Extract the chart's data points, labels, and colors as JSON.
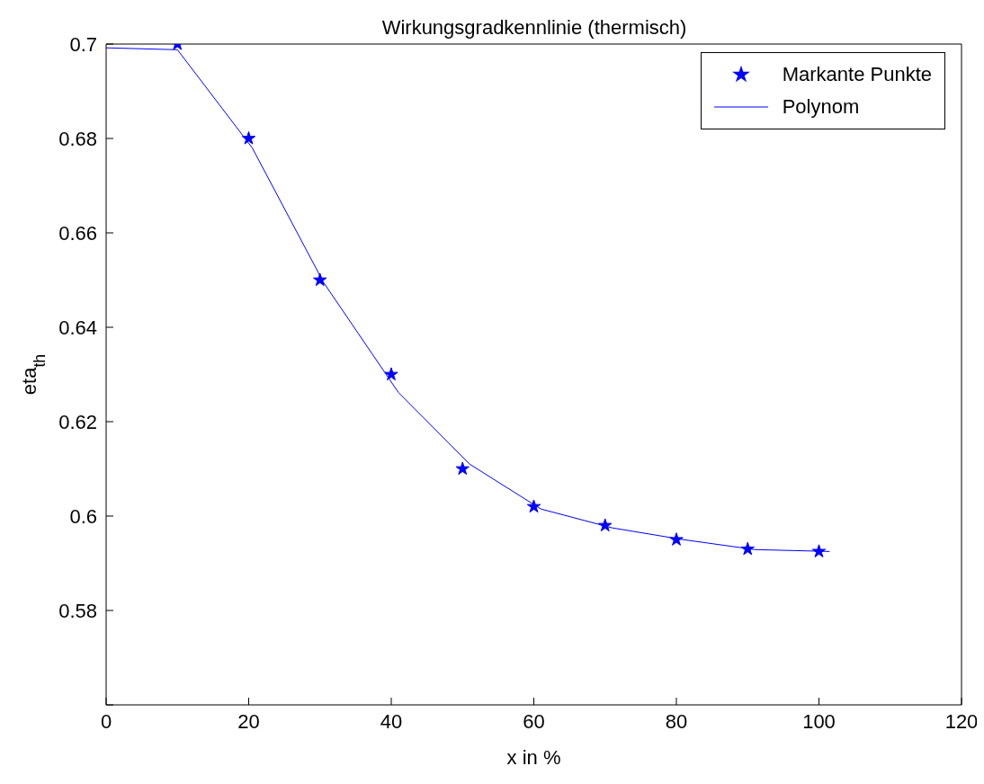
{
  "chart_data": {
    "type": "line",
    "title": "Wirkungsgradkennlinie (thermisch)",
    "xlabel": "x in %",
    "ylabel": "eta$_{th}$",
    "xlim": [
      0,
      120
    ],
    "xticks": [
      0,
      20,
      40,
      60,
      80,
      100,
      120
    ],
    "ylim": [
      0.56,
      0.7
    ],
    "yticks": [
      {
        "value": 0.56,
        "label": null
      },
      0.58,
      0.6,
      0.62,
      0.64,
      0.66,
      0.68,
      0.7
    ],
    "grid": false,
    "legend": "top right",
    "line_style": "solid",
    "series": [
      {
        "name": "Markante Punkte",
        "type": "scatter",
        "marker": "star",
        "color": "#0000ff",
        "x": [
          10,
          20,
          30,
          40,
          50,
          60,
          70,
          80,
          90,
          100
        ],
        "values": [
          0.7,
          0.68,
          0.65,
          0.63,
          0.61,
          0.602,
          0.598,
          0.595,
          0.593,
          0.5925
        ]
      },
      {
        "name": "Polynom",
        "marker": "none",
        "color": "#0000ff",
        "x": [
          0,
          10,
          20.5,
          30.5,
          41,
          51,
          61,
          71,
          81,
          91,
          101.5
        ],
        "values": [
          0.6992,
          0.6988,
          0.678,
          0.6495,
          0.6262,
          0.611,
          0.6015,
          0.5975,
          0.595,
          0.5929,
          0.5925
        ]
      }
    ]
  }
}
